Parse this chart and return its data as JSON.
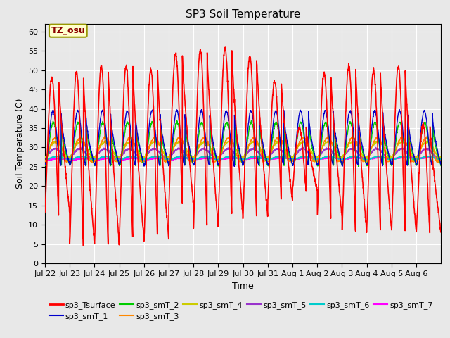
{
  "title": "SP3 Soil Temperature",
  "xlabel": "Time",
  "ylabel": "Soil Temperature (C)",
  "ylim": [
    0,
    62
  ],
  "yticks": [
    0,
    5,
    10,
    15,
    20,
    25,
    30,
    35,
    40,
    45,
    50,
    55,
    60
  ],
  "annotation_text": "TZ_osu",
  "annotation_color": "#8b0000",
  "annotation_bg": "#ffffcc",
  "annotation_border": "#999900",
  "bg_color": "#e8e8e8",
  "series_colors": {
    "sp3_Tsurface": "#ff0000",
    "sp3_smT_1": "#0000cc",
    "sp3_smT_2": "#00cc00",
    "sp3_smT_3": "#ff8800",
    "sp3_smT_4": "#cccc00",
    "sp3_smT_5": "#9933cc",
    "sp3_smT_6": "#00cccc",
    "sp3_smT_7": "#ff00ff"
  },
  "n_days": 16,
  "points_per_day": 144,
  "x_tick_labels": [
    "Jul 22",
    "Jul 23",
    "Jul 24",
    "Jul 25",
    "Jul 26",
    "Jul 27",
    "Jul 28",
    "Jul 29",
    "Jul 30",
    "Jul 31",
    "Aug 1",
    "Aug 2",
    "Aug 3",
    "Aug 4",
    "Aug 5",
    "Aug 6"
  ],
  "surface_daily_max": [
    48,
    49.5,
    51,
    51,
    50,
    54,
    55,
    55.5,
    53.5,
    47,
    35,
    49,
    51,
    50,
    51,
    36
  ],
  "surface_daily_min": [
    13,
    5,
    5,
    6,
    6,
    15,
    9,
    12,
    12,
    16,
    19,
    12,
    8,
    9,
    8,
    8
  ],
  "line_width": 1.0,
  "surface_lw": 1.2,
  "title_fontsize": 11,
  "tick_fontsize": 8,
  "label_fontsize": 9,
  "legend_fontsize": 8
}
